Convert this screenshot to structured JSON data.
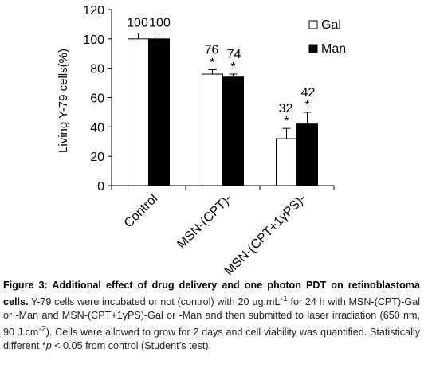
{
  "chart_data": {
    "type": "bar",
    "ylabel": "Living Y-79 cells(%)",
    "ylim": [
      0,
      120
    ],
    "yticks": [
      "0",
      "20",
      "40",
      "60",
      "80",
      "100",
      "120"
    ],
    "categories": [
      "Control",
      "MSN-(CPT)-",
      "MSN-(CPT+1γPS)-"
    ],
    "legend_position": "top-right",
    "series": [
      {
        "name": "Gal",
        "color": "#ffffff",
        "values": [
          100,
          76,
          32
        ],
        "errors": [
          4,
          3,
          7
        ],
        "labels": [
          "100",
          "76",
          "32"
        ],
        "sig": [
          "",
          "*",
          "*"
        ]
      },
      {
        "name": "Man",
        "color": "#000000",
        "values": [
          100,
          74,
          42
        ],
        "errors": [
          4,
          2,
          8
        ],
        "labels": [
          "100",
          "74",
          "42"
        ],
        "sig": [
          "",
          "*",
          "*"
        ]
      }
    ]
  },
  "caption": {
    "label": "Figure 3: Additional effect of drug delivery and one photon PDT on retinoblastoma cells.",
    "p1": " Y-79 cells were incubated or not (control) with 20 µg.mL",
    "sup1": "-1",
    "p2": " for 24 h with MSN-(CPT)-Gal or -Man and MSN-(CPT+1γPS)-Gal or -Man and then submitted to laser irradiation (650 nm, 90 J.cm",
    "sup2": "-2",
    "p3": "). Cells were allowed to grow for 2 days and cell viability was quantified. Statistically different *",
    "pvar": "p",
    "p4": " < 0.05 from control (Student’s test)."
  }
}
